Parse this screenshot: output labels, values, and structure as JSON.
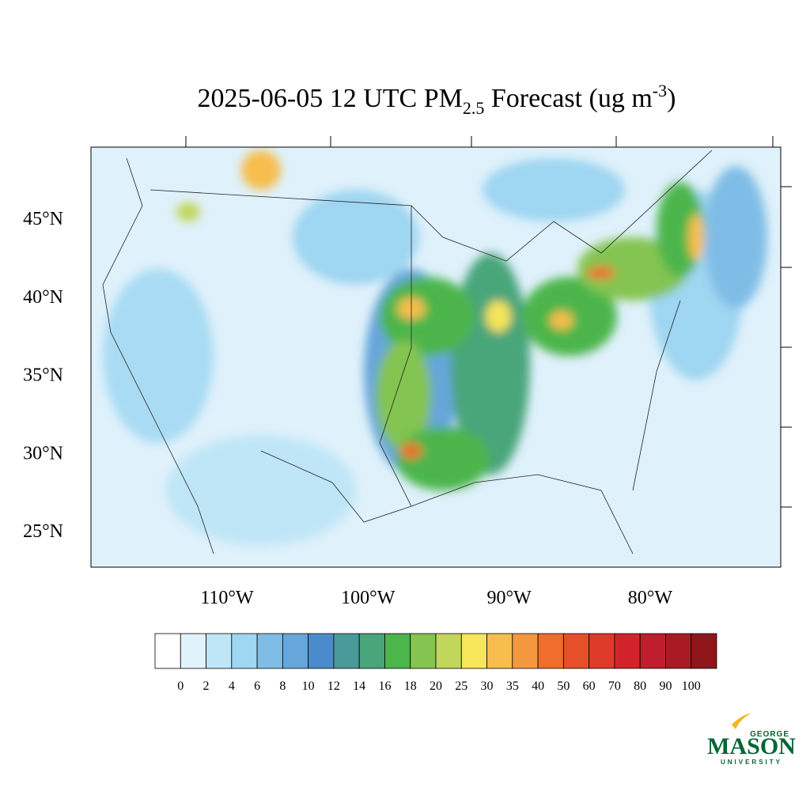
{
  "title": {
    "main": "2025-06-05 12 UTC PM",
    "subscript": "2.5",
    "middle": " Forecast (ug m",
    "superscript": "-3",
    "end": ")"
  },
  "map": {
    "lat_labels": [
      {
        "value": 45,
        "label": "45°N"
      },
      {
        "value": 40,
        "label": "40°N"
      },
      {
        "value": 35,
        "label": "35°N"
      },
      {
        "value": 30,
        "label": "30°N"
      },
      {
        "value": 25,
        "label": "25°N"
      }
    ],
    "lon_labels": [
      {
        "value": -110,
        "label": "110°W"
      },
      {
        "value": -100,
        "label": "100°W"
      },
      {
        "value": -90,
        "label": "90°W"
      },
      {
        "value": -80,
        "label": "80°W"
      }
    ]
  },
  "colorbar": {
    "levels": [
      0,
      2,
      4,
      6,
      8,
      10,
      12,
      14,
      16,
      18,
      20,
      25,
      30,
      35,
      40,
      50,
      60,
      70,
      80,
      90,
      100
    ],
    "colors": [
      "#ffffff",
      "#e0f3fb",
      "#bfe6f7",
      "#9fd6f2",
      "#80bde6",
      "#66a6da",
      "#4a8ccb",
      "#4a9a9a",
      "#4aa57a",
      "#4cb54c",
      "#84c451",
      "#c2d65b",
      "#f7e55a",
      "#f7be4d",
      "#f4983f",
      "#ef6d2d",
      "#e5502b",
      "#dd3a2a",
      "#d2232b",
      "#bf1e2c",
      "#a81b22",
      "#8f161b"
    ]
  },
  "logo": {
    "top": "GEORGE",
    "main": "MASON",
    "bottom": "UNIVERSITY"
  }
}
